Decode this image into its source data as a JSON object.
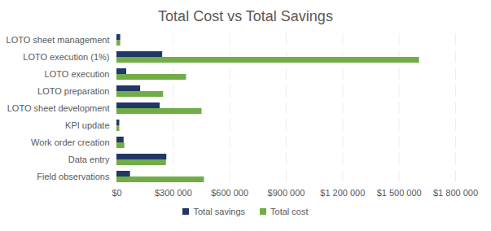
{
  "chart_data": {
    "type": "bar",
    "orientation": "horizontal",
    "title": "Total Cost vs Total Savings",
    "categories": [
      "LOTO sheet management",
      "LOTO execution (1%)",
      "LOTO execution",
      "LOTO preparation",
      "LOTO sheet development",
      "KPI update",
      "Work order creation",
      "Data entry",
      "Field observations"
    ],
    "series": [
      {
        "name": "Total savings",
        "color": "#203864",
        "values": [
          20000,
          243000,
          52000,
          126000,
          230000,
          15000,
          38000,
          265000,
          72000
        ]
      },
      {
        "name": "Total cost",
        "color": "#70ad47",
        "values": [
          20000,
          1608000,
          370000,
          248000,
          452000,
          15000,
          42000,
          263000,
          465000
        ]
      }
    ],
    "xlim": [
      0,
      1800000
    ],
    "xticks": [
      {
        "value": 0,
        "label": "$0"
      },
      {
        "value": 300000,
        "label": "$300 000"
      },
      {
        "value": 600000,
        "label": "$600 000"
      },
      {
        "value": 900000,
        "label": "$900 000"
      },
      {
        "value": 1200000,
        "label": "$1 200 000"
      },
      {
        "value": 1500000,
        "label": "$1 500 000"
      },
      {
        "value": 1800000,
        "label": "$1 800 000"
      }
    ],
    "grid": true,
    "legend": "bottom"
  }
}
